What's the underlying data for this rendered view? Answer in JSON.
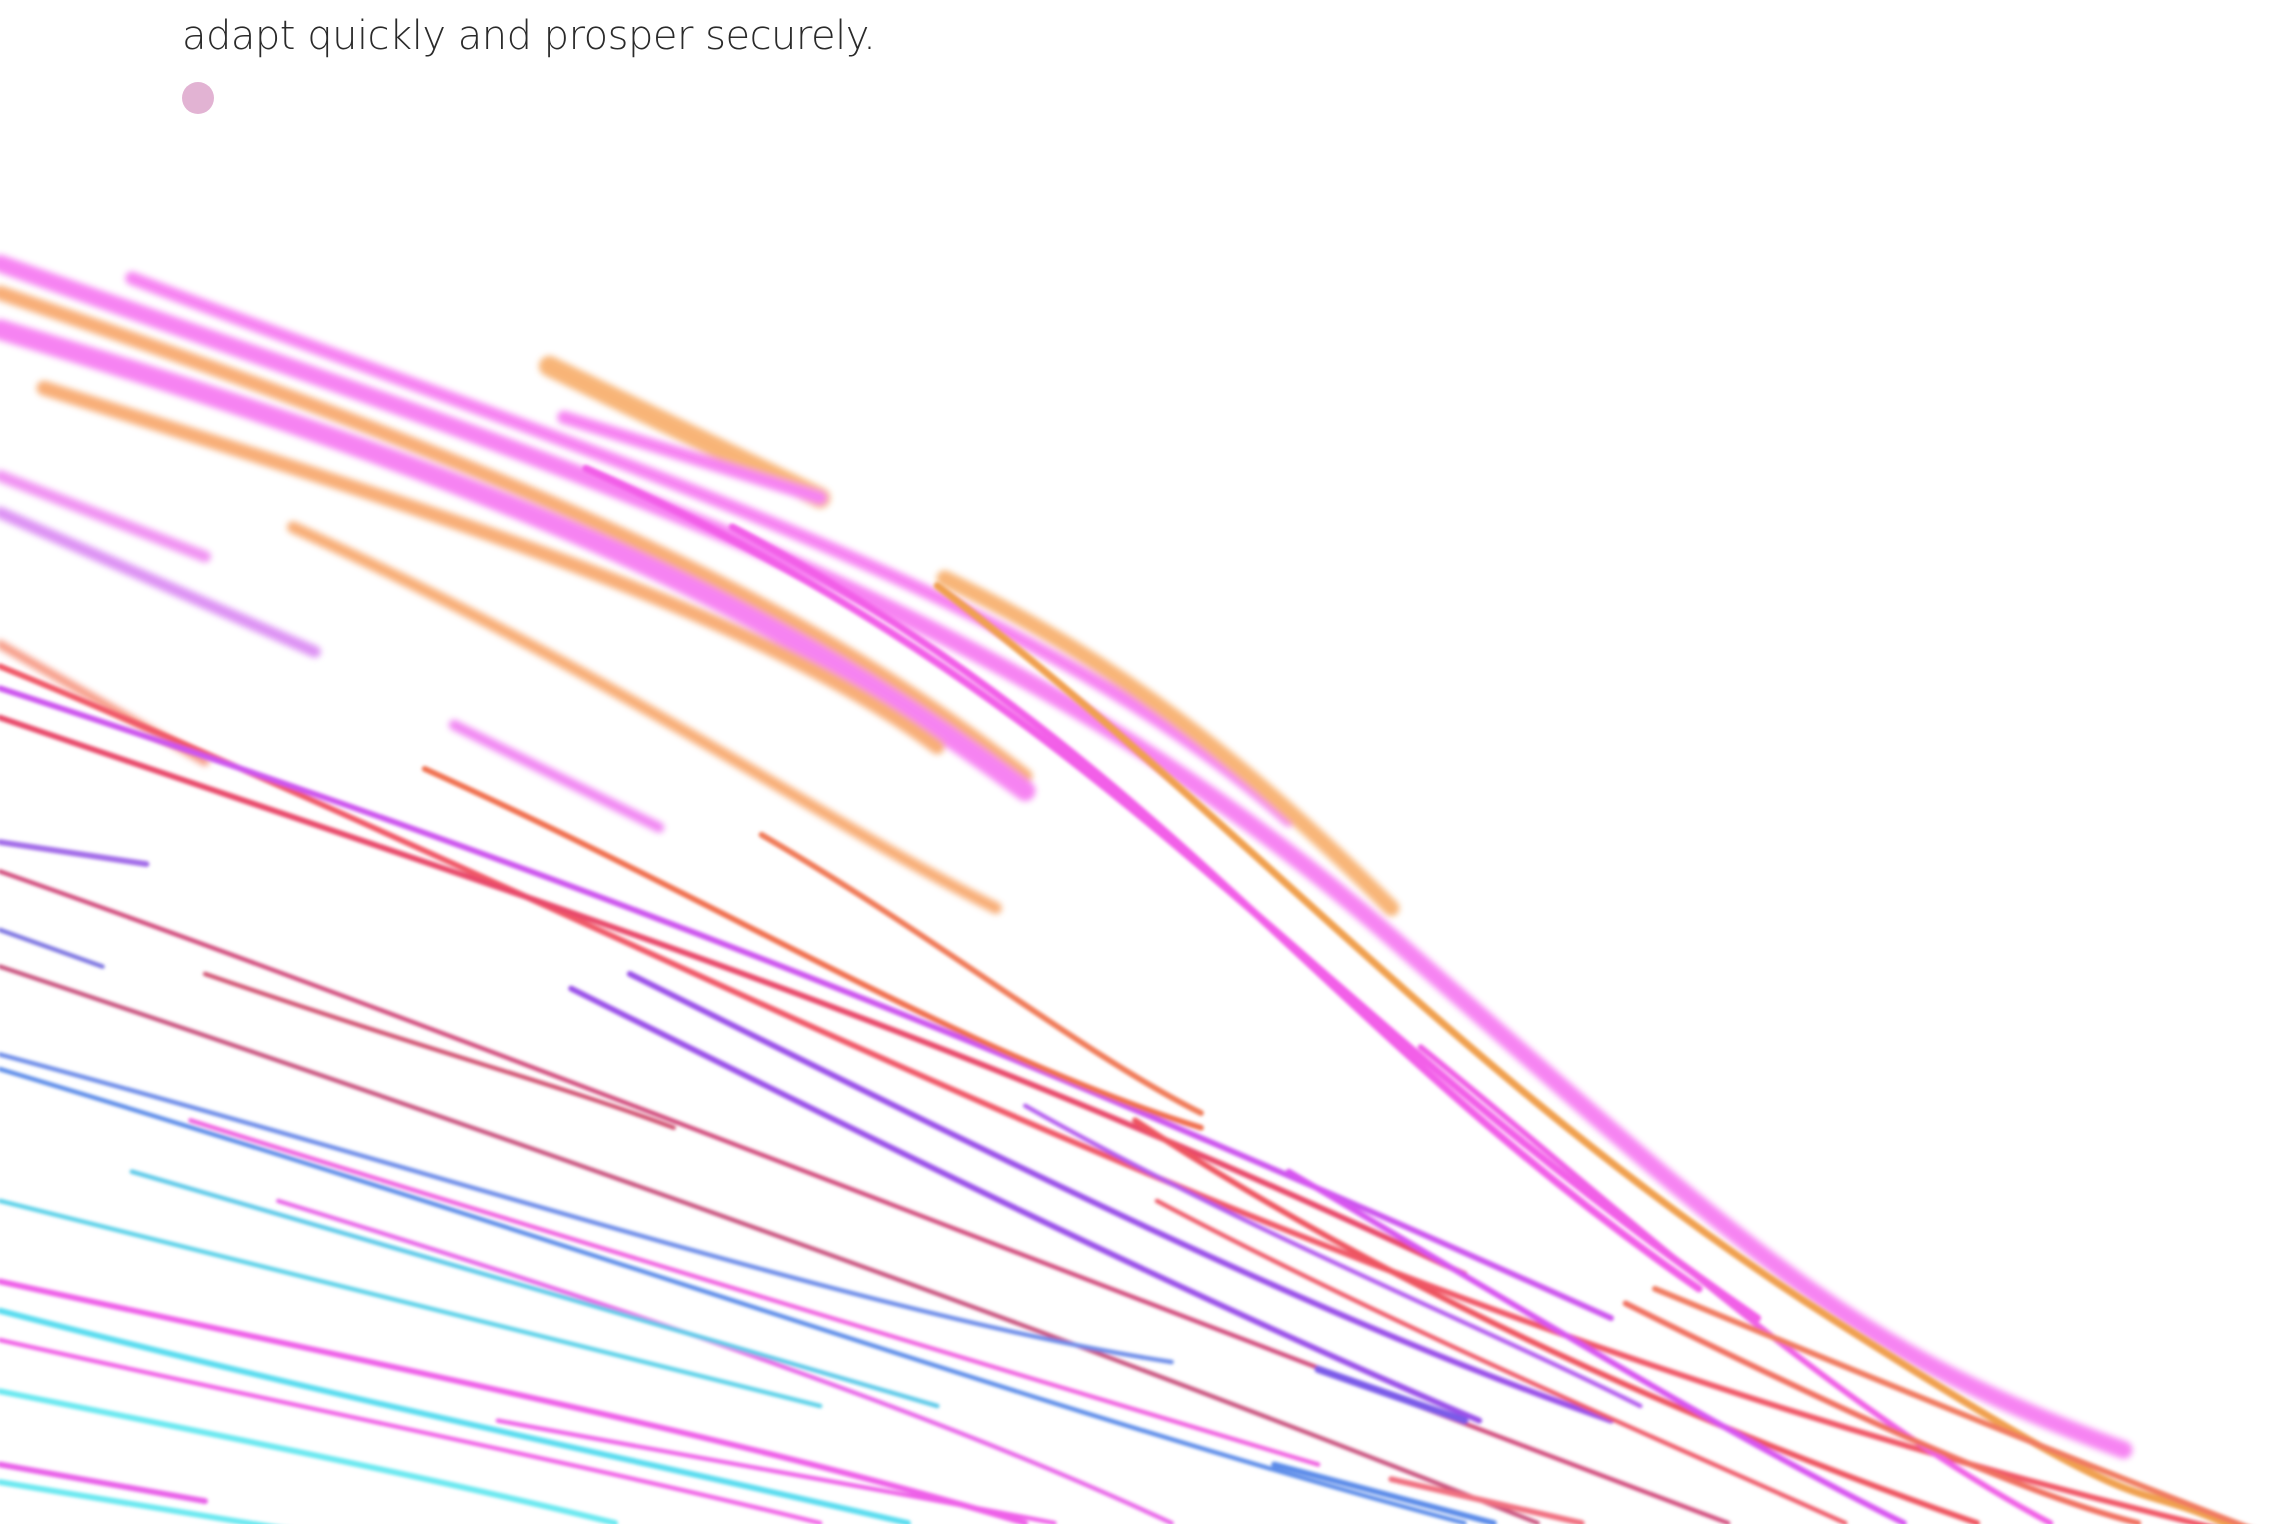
{
  "body_text": "adapt quickly and prosper securely."
}
